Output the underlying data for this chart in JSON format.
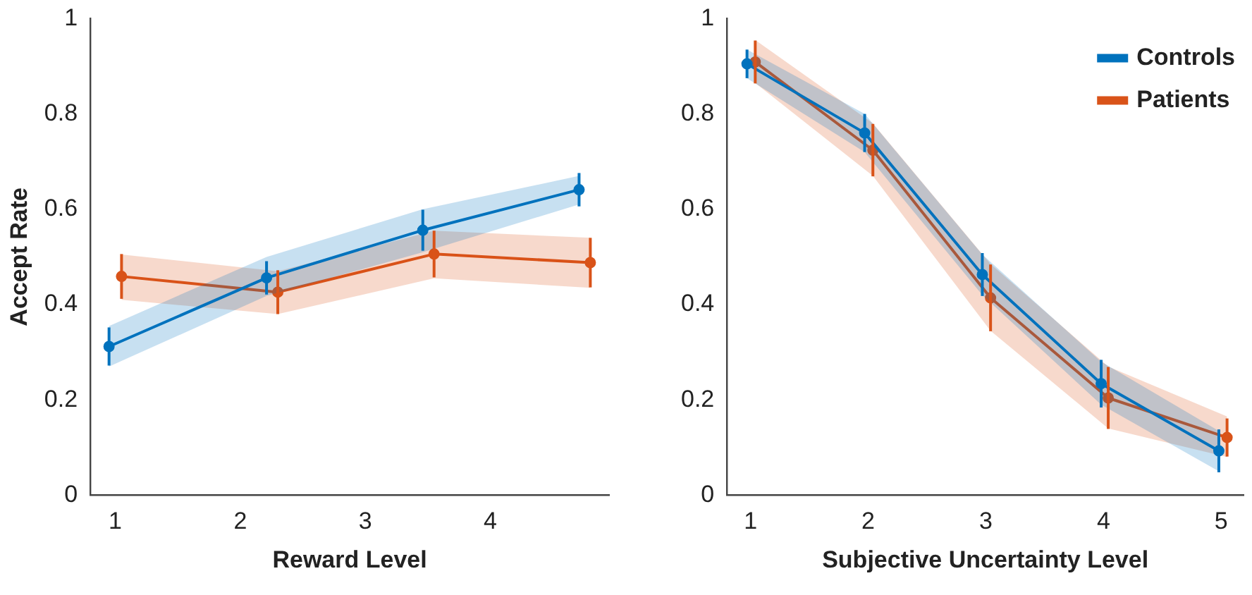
{
  "chart_data": [
    {
      "type": "line",
      "xlabel": "Reward Level",
      "ylabel": "Accept Rate",
      "xlim": [
        0.8,
        4.95
      ],
      "xticks": [
        1,
        2,
        3,
        4
      ],
      "ylim": [
        0,
        1
      ],
      "yticks": [
        0,
        0.2,
        0.4,
        0.6,
        0.8,
        1
      ],
      "marker": "circle",
      "series": [
        {
          "color": "#0072bd",
          "x": [
            0.95,
            2.21,
            3.46,
            4.71
          ],
          "values": [
            0.312,
            0.456,
            0.556,
            0.641
          ],
          "errors": [
            0.04,
            0.035,
            0.043,
            0.035
          ],
          "lower": [
            0.27,
            0.418,
            0.51,
            0.61
          ],
          "upper": [
            0.355,
            0.5,
            0.6,
            0.67
          ]
        },
        {
          "color": "#d95319",
          "x": [
            1.05,
            2.3,
            3.55,
            4.8
          ],
          "values": [
            0.459,
            0.426,
            0.506,
            0.488
          ],
          "errors": [
            0.047,
            0.046,
            0.049,
            0.052
          ],
          "lower": [
            0.41,
            0.38,
            0.455,
            0.435
          ],
          "upper": [
            0.505,
            0.47,
            0.555,
            0.54
          ]
        }
      ]
    },
    {
      "type": "line",
      "xlabel": "Subjective Uncertainty Level",
      "xlim": [
        0.8,
        5.19
      ],
      "xticks": [
        1,
        2,
        3,
        4,
        5
      ],
      "ylim": [
        0,
        1
      ],
      "yticks": [
        0,
        0.2,
        0.4,
        0.6,
        0.8,
        1
      ],
      "marker": "circle",
      "legend": "top right",
      "series": [
        {
          "name": "Controls",
          "color": "#0072bd",
          "x": [
            0.97,
            1.97,
            2.97,
            3.98,
            4.98
          ],
          "values": [
            0.905,
            0.76,
            0.463,
            0.234,
            0.093
          ],
          "errors": [
            0.03,
            0.04,
            0.045,
            0.05,
            0.045
          ],
          "lower": [
            0.875,
            0.72,
            0.42,
            0.19,
            0.05
          ],
          "upper": [
            0.935,
            0.8,
            0.505,
            0.28,
            0.135
          ]
        },
        {
          "name": "Patients",
          "color": "#d95319",
          "x": [
            1.04,
            2.04,
            3.04,
            4.04,
            5.05
          ],
          "values": [
            0.909,
            0.724,
            0.414,
            0.204,
            0.121
          ],
          "errors": [
            0.045,
            0.055,
            0.07,
            0.065,
            0.04
          ],
          "lower": [
            0.865,
            0.67,
            0.345,
            0.14,
            0.08
          ],
          "upper": [
            0.955,
            0.78,
            0.485,
            0.27,
            0.165
          ]
        }
      ]
    }
  ]
}
